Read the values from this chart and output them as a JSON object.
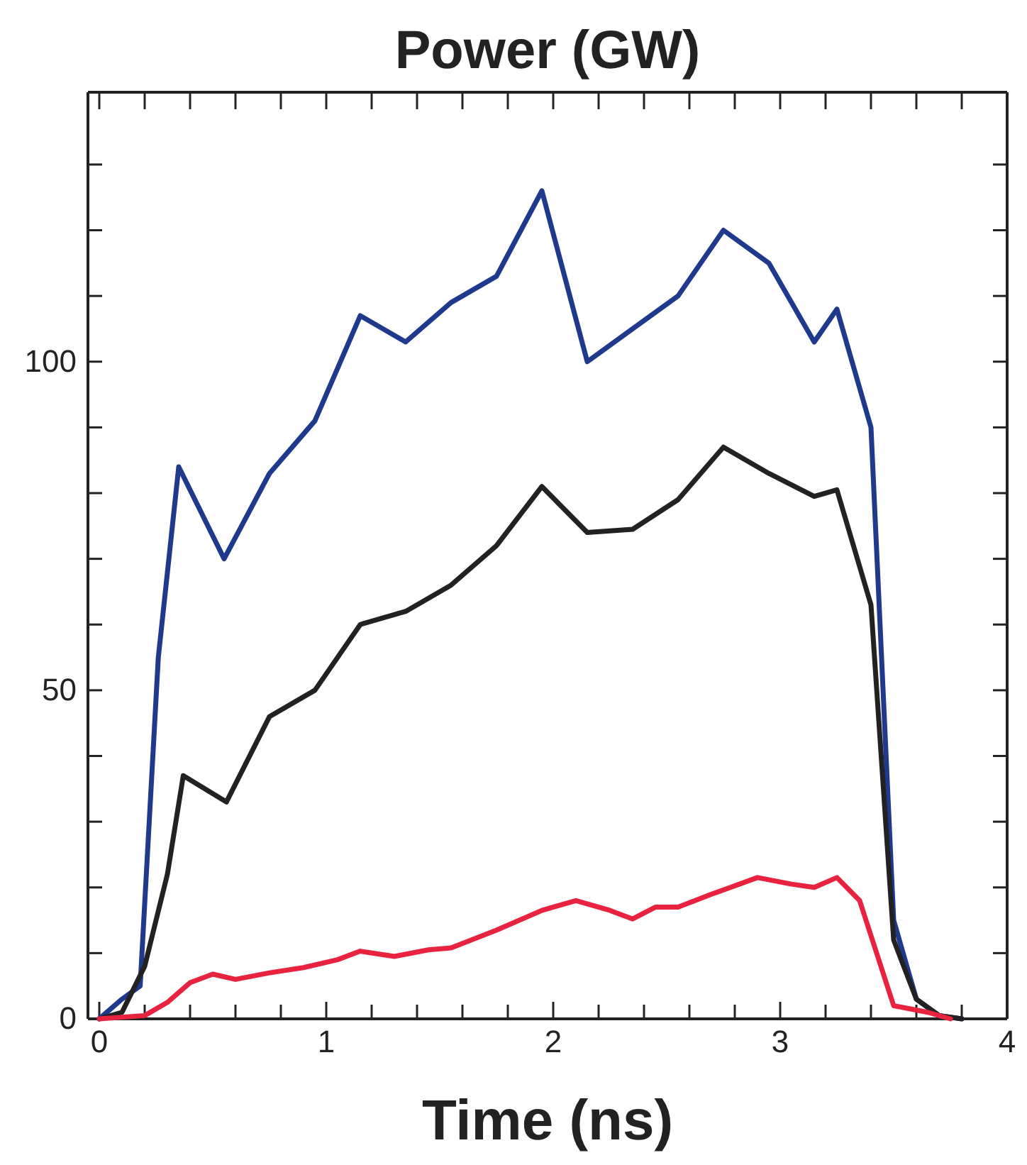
{
  "chart_data": {
    "type": "line",
    "title": "Power (GW)",
    "xlabel": "Time (ns)",
    "xlim": [
      -0.05,
      4
    ],
    "ylim": [
      0,
      141
    ],
    "xticks": [
      0,
      {
        "value": 0.2,
        "label": null
      },
      {
        "value": 0.4,
        "label": null
      },
      {
        "value": 0.6,
        "label": null
      },
      {
        "value": 0.8,
        "label": null
      },
      1,
      {
        "value": 1.2,
        "label": null
      },
      {
        "value": 1.4,
        "label": null
      },
      {
        "value": 1.6,
        "label": null
      },
      {
        "value": 1.8,
        "label": null
      },
      2,
      {
        "value": 2.2,
        "label": null
      },
      {
        "value": 2.4,
        "label": null
      },
      {
        "value": 2.6,
        "label": null
      },
      {
        "value": 2.8,
        "label": null
      },
      3,
      {
        "value": 3.2,
        "label": null
      },
      {
        "value": 3.4,
        "label": null
      },
      {
        "value": 3.6,
        "label": null
      },
      {
        "value": 3.8,
        "label": null
      },
      4
    ],
    "yticks": [
      0,
      {
        "value": 10,
        "label": null
      },
      {
        "value": 20,
        "label": null
      },
      {
        "value": 30,
        "label": null
      },
      {
        "value": 40,
        "label": null
      },
      50,
      {
        "value": 60,
        "label": null
      },
      {
        "value": 70,
        "label": null
      },
      {
        "value": 80,
        "label": null
      },
      {
        "value": 90,
        "label": null
      },
      100,
      {
        "value": 110,
        "label": null
      },
      {
        "value": 120,
        "label": null
      },
      {
        "value": 130,
        "label": null
      }
    ],
    "grid": false,
    "marker": "none",
    "line_style": "solid",
    "series": [
      {
        "color": "#1f3a8c",
        "x": [
          0,
          0.1,
          0.18,
          0.26,
          0.35,
          0.55,
          0.75,
          0.95,
          1.15,
          1.35,
          1.55,
          1.75,
          1.95,
          2.15,
          2.35,
          2.55,
          2.75,
          2.95,
          3.15,
          3.25,
          3.4,
          3.5,
          3.6,
          3.7,
          3.8
        ],
        "values": [
          0,
          3,
          5,
          55,
          84,
          70,
          83,
          91,
          107,
          103,
          109,
          113,
          126,
          100,
          105,
          110,
          120,
          115,
          103,
          108,
          90,
          15,
          3,
          0.5,
          0
        ]
      },
      {
        "color": "#222222",
        "x": [
          0,
          0.1,
          0.2,
          0.3,
          0.37,
          0.56,
          0.75,
          0.95,
          1.15,
          1.35,
          1.55,
          1.75,
          1.95,
          2.15,
          2.35,
          2.55,
          2.75,
          2.95,
          3.15,
          3.25,
          3.4,
          3.5,
          3.6,
          3.7,
          3.8
        ],
        "values": [
          0,
          1,
          8,
          22,
          37,
          33,
          46,
          50,
          60,
          62,
          66,
          72,
          81,
          74,
          74.5,
          79,
          87,
          83,
          79.5,
          80.5,
          63,
          12,
          3,
          0.5,
          0
        ]
      },
      {
        "color": "#e8233f",
        "x": [
          0,
          0.2,
          0.3,
          0.4,
          0.5,
          0.6,
          0.75,
          0.9,
          1.05,
          1.15,
          1.3,
          1.45,
          1.55,
          1.75,
          1.95,
          2.1,
          2.25,
          2.35,
          2.45,
          2.55,
          2.7,
          2.9,
          3.05,
          3.15,
          3.25,
          3.35,
          3.5,
          3.65,
          3.75
        ],
        "values": [
          0,
          0.5,
          2.5,
          5.5,
          6.8,
          6,
          7,
          7.8,
          9,
          10.3,
          9.5,
          10.5,
          10.8,
          13.5,
          16.5,
          18,
          16.5,
          15.2,
          17,
          17,
          19,
          21.5,
          20.5,
          20,
          21.5,
          18,
          2,
          1,
          0
        ]
      }
    ]
  }
}
